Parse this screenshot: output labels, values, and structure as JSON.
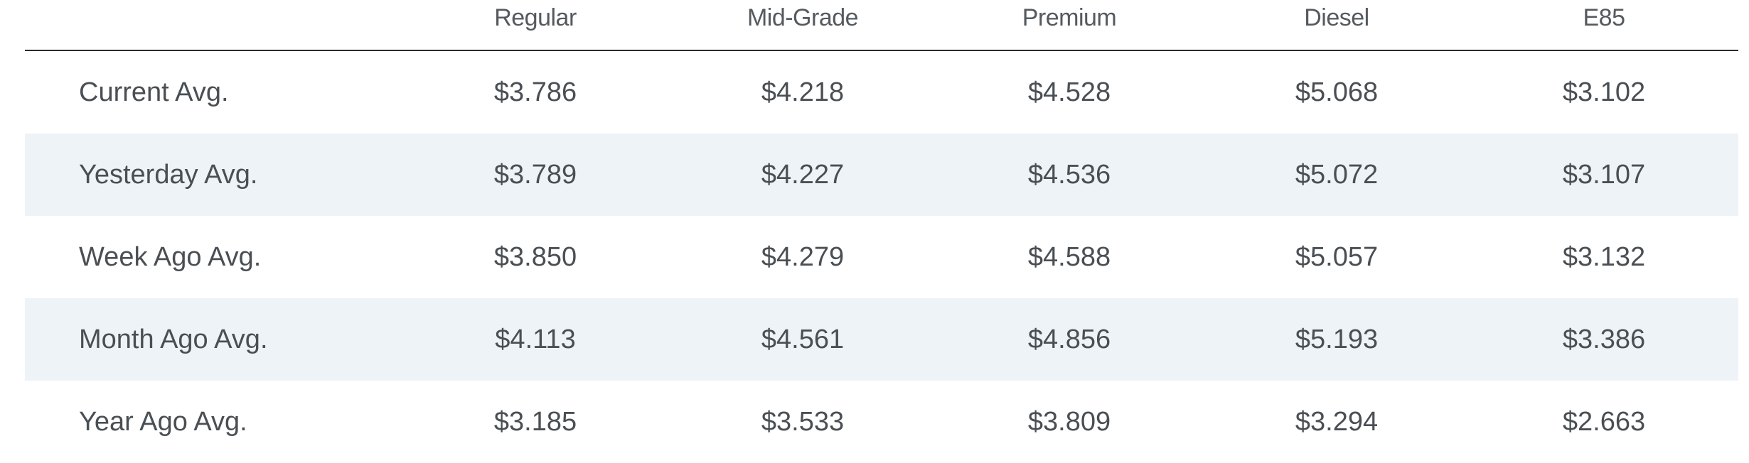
{
  "table": {
    "columns": [
      "Regular",
      "Mid-Grade",
      "Premium",
      "Diesel",
      "E85"
    ],
    "rows": [
      {
        "label": "Current Avg.",
        "values": [
          "$3.786",
          "$4.218",
          "$4.528",
          "$5.068",
          "$3.102"
        ]
      },
      {
        "label": "Yesterday Avg.",
        "values": [
          "$3.789",
          "$4.227",
          "$4.536",
          "$5.072",
          "$3.107"
        ]
      },
      {
        "label": "Week Ago Avg.",
        "values": [
          "$3.850",
          "$4.279",
          "$4.588",
          "$5.057",
          "$3.132"
        ]
      },
      {
        "label": "Month Ago Avg.",
        "values": [
          "$4.113",
          "$4.561",
          "$4.856",
          "$5.193",
          "$3.386"
        ]
      },
      {
        "label": "Year Ago Avg.",
        "values": [
          "$3.185",
          "$3.533",
          "$3.809",
          "$3.294",
          "$2.663"
        ]
      }
    ]
  }
}
